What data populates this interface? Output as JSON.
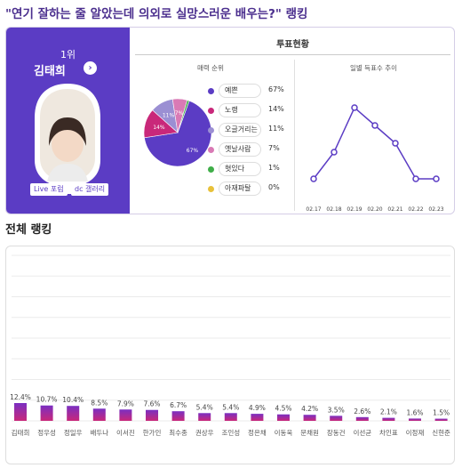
{
  "title": "\"연기 잘하는 줄 알았는데 의외로 실망스러운 배우는?\" 랭킹",
  "winner": {
    "rank": "1위",
    "name": "김태희",
    "arrow": "›",
    "buttons": [
      "Live 포럼",
      "dc 갤러리"
    ]
  },
  "vote": {
    "title": "투표현황",
    "charm_title": "매력 순위",
    "daily_title": "일별 득표수 추이",
    "legend": [
      {
        "label": "예쁜",
        "pct": "67%",
        "value": 67,
        "color": "#5b3cc4"
      },
      {
        "label": "노랭",
        "pct": "14%",
        "value": 14,
        "color": "#c9287a"
      },
      {
        "label": "오글거리는",
        "pct": "11%",
        "value": 11,
        "color": "#9b8fd3"
      },
      {
        "label": "옛날사람",
        "pct": "7%",
        "value": 7,
        "color": "#d97ab5"
      },
      {
        "label": "혓있다",
        "pct": "1%",
        "value": 1,
        "color": "#3fae49"
      },
      {
        "label": "아재파탈",
        "pct": "0%",
        "value": 0,
        "color": "#e8c13a"
      }
    ],
    "pie_labels": [
      "67%",
      "14%",
      "11%",
      "7%"
    ]
  },
  "chart_data": [
    {
      "type": "pie",
      "title": "매력 순위",
      "categories": [
        "예쁜",
        "노랭",
        "오글거리는",
        "옛날사람",
        "혓있다",
        "아재파탈"
      ],
      "values": [
        67,
        14,
        11,
        7,
        1,
        0
      ]
    },
    {
      "type": "line",
      "title": "일별 득표수 추이",
      "x": [
        "02.17",
        "02.18",
        "02.19",
        "02.20",
        "02.21",
        "02.22",
        "02.23"
      ],
      "values": [
        2,
        5,
        10,
        8,
        6,
        2,
        2
      ],
      "ylim": [
        0,
        12
      ]
    },
    {
      "type": "bar",
      "title": "전체 랭킹",
      "categories": [
        "김태희",
        "정우성",
        "정일우",
        "배두나",
        "이서진",
        "한가인",
        "최수종",
        "권상우",
        "조인성",
        "정은채",
        "이동욱",
        "문채원",
        "장동건",
        "이선균",
        "차인표",
        "이정재",
        "신현준"
      ],
      "labels": [
        "12.4%",
        "10.7%",
        "10.4%",
        "8.5%",
        "7.9%",
        "7.6%",
        "6.7%",
        "5.4%",
        "5.4%",
        "4.9%",
        "4.5%",
        "4.2%",
        "3.5%",
        "2.6%",
        "2.1%",
        "1.6%",
        "1.5%"
      ],
      "values": [
        12.4,
        10.7,
        10.4,
        8.5,
        7.9,
        7.6,
        6.7,
        5.4,
        5.4,
        4.9,
        4.5,
        4.2,
        3.5,
        2.6,
        2.1,
        1.6,
        1.5
      ]
    }
  ],
  "ranking": {
    "title": "전체 랭킹"
  },
  "colors": {
    "brand": "#5b3cc4",
    "bar_top": "#7a2fc2",
    "bar_bottom": "#c9287a"
  }
}
